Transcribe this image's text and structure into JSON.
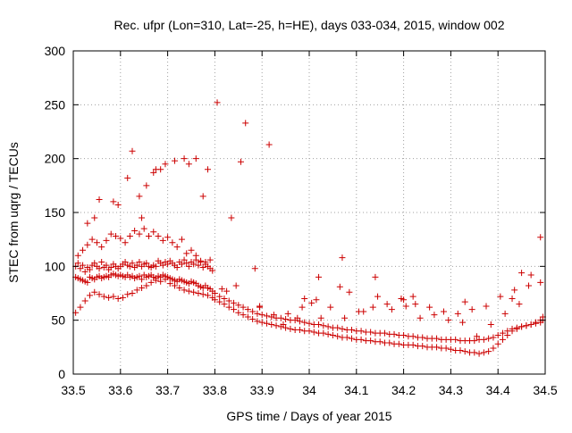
{
  "colors": {
    "series": "#cc0000",
    "axis": "#000000",
    "grid": "#a0a0a0"
  },
  "chart_data": {
    "type": "scatter",
    "title": "Rec. ufpr (Lon=310, Lat=-25, h=HE), days 033-034, 2015, window 002",
    "xlabel": "GPS time / Days of year 2015",
    "ylabel": "STEC from uqrg / TECUs",
    "xlim": [
      33.5,
      34.5
    ],
    "ylim": [
      0,
      300
    ],
    "xticks": [
      "33.5",
      "33.6",
      "33.7",
      "33.8",
      "33.9",
      "34",
      "34.1",
      "34.2",
      "34.3",
      "34.4",
      "34.5"
    ],
    "yticks": [
      "0",
      "50",
      "100",
      "150",
      "200",
      "250",
      "300"
    ],
    "grid": true,
    "marker": "plus",
    "x": [
      33.505,
      33.51,
      33.515,
      33.52,
      33.525,
      33.53,
      33.535,
      33.54,
      33.545,
      33.55,
      33.555,
      33.56,
      33.565,
      33.57,
      33.575,
      33.58,
      33.585,
      33.59,
      33.595,
      33.6,
      33.605,
      33.61,
      33.615,
      33.62,
      33.625,
      33.63,
      33.635,
      33.64,
      33.645,
      33.65,
      33.655,
      33.66,
      33.665,
      33.67,
      33.675,
      33.68,
      33.685,
      33.69,
      33.695,
      33.7,
      33.705,
      33.71,
      33.715,
      33.72,
      33.725,
      33.73,
      33.735,
      33.74,
      33.745,
      33.75,
      33.755,
      33.76,
      33.765,
      33.77,
      33.775,
      33.78,
      33.785,
      33.79,
      33.795,
      33.505,
      33.51,
      33.515,
      33.52,
      33.525,
      33.53,
      33.535,
      33.54,
      33.545,
      33.55,
      33.555,
      33.56,
      33.565,
      33.57,
      33.575,
      33.58,
      33.585,
      33.59,
      33.595,
      33.6,
      33.605,
      33.61,
      33.615,
      33.62,
      33.625,
      33.63,
      33.635,
      33.64,
      33.645,
      33.65,
      33.655,
      33.66,
      33.665,
      33.67,
      33.675,
      33.68,
      33.685,
      33.69,
      33.695,
      33.7,
      33.705,
      33.71,
      33.715,
      33.72,
      33.725,
      33.73,
      33.735,
      33.74,
      33.745,
      33.75,
      33.755,
      33.76,
      33.765,
      33.77,
      33.775,
      33.78,
      33.785,
      33.79,
      33.795,
      33.505,
      33.515,
      33.525,
      33.535,
      33.545,
      33.555,
      33.565,
      33.575,
      33.585,
      33.595,
      33.605,
      33.615,
      33.625,
      33.635,
      33.645,
      33.655,
      33.665,
      33.675,
      33.685,
      33.695,
      33.705,
      33.715,
      33.725,
      33.735,
      33.745,
      33.755,
      33.765,
      33.775,
      33.785,
      33.795,
      33.51,
      33.52,
      33.53,
      33.54,
      33.55,
      33.56,
      33.57,
      33.58,
      33.59,
      33.6,
      33.61,
      33.62,
      33.63,
      33.64,
      33.65,
      33.66,
      33.67,
      33.68,
      33.69,
      33.7,
      33.71,
      33.72,
      33.73,
      33.74,
      33.75,
      33.76,
      33.77,
      33.78,
      33.79,
      33.53,
      33.545,
      33.555,
      33.585,
      33.595,
      33.615,
      33.625,
      33.64,
      33.645,
      33.655,
      33.67,
      33.675,
      33.685,
      33.695,
      33.715,
      33.735,
      33.745,
      33.76,
      33.775,
      33.785,
      33.805,
      33.835,
      33.855,
      33.865,
      33.915,
      33.8,
      33.81,
      33.82,
      33.83,
      33.84,
      33.85,
      33.86,
      33.87,
      33.88,
      33.89,
      33.9,
      33.91,
      33.92,
      33.93,
      33.94,
      33.95,
      33.96,
      33.97,
      33.98,
      33.99,
      34,
      34.01,
      34.02,
      34.03,
      34.04,
      34.05,
      34.06,
      34.07,
      34.08,
      34.09,
      34.1,
      34.11,
      34.12,
      34.13,
      34.14,
      34.15,
      34.16,
      34.17,
      34.18,
      34.19,
      34.2,
      34.21,
      34.22,
      34.23,
      34.24,
      34.25,
      34.26,
      34.27,
      34.28,
      34.29,
      34.3,
      34.31,
      34.32,
      34.33,
      34.34,
      34.35,
      34.36,
      34.37,
      34.38,
      34.39,
      34.4,
      34.41,
      34.42,
      34.43,
      34.44,
      34.45,
      34.46,
      34.47,
      34.48,
      34.49,
      34.495,
      33.8,
      33.81,
      33.82,
      33.83,
      33.84,
      33.85,
      33.86,
      33.87,
      33.88,
      33.89,
      33.9,
      33.91,
      33.92,
      33.93,
      33.94,
      33.95,
      33.96,
      33.97,
      33.98,
      33.99,
      34,
      34.01,
      34.02,
      34.03,
      34.04,
      34.05,
      34.06,
      34.07,
      34.08,
      34.09,
      34.1,
      34.11,
      34.12,
      34.13,
      34.14,
      34.15,
      34.16,
      34.17,
      34.18,
      34.19,
      34.2,
      34.21,
      34.22,
      34.23,
      34.24,
      34.25,
      34.26,
      34.27,
      34.28,
      34.29,
      34.3,
      34.31,
      34.32,
      34.33,
      34.34,
      34.35,
      34.36,
      34.37,
      34.38,
      34.39,
      34.4,
      34.41,
      34.42,
      34.43,
      34.44,
      34.45,
      34.46,
      34.47,
      34.48,
      34.49,
      34.495,
      33.895,
      33.925,
      33.955,
      33.985,
      34.015,
      34.045,
      34.075,
      34.105,
      34.135,
      34.165,
      34.195,
      34.225,
      34.255,
      34.285,
      34.315,
      34.345,
      34.375,
      34.405,
      34.435,
      34.465,
      34.49,
      33.815,
      33.825,
      33.845,
      33.885,
      33.895,
      33.945,
      33.975,
      34.005,
      34.025,
      34.065,
      34.085,
      34.115,
      34.145,
      34.175,
      34.205,
      34.235,
      34.265,
      34.295,
      34.325,
      34.355,
      34.385,
      34.415,
      34.445,
      33.99,
      34.02,
      34.07,
      34.14,
      34.2,
      34.22,
      34.33,
      34.43,
      34.45,
      34.47,
      34.49
    ],
    "y": [
      100,
      103,
      98,
      101,
      95,
      99,
      97,
      101,
      103,
      100,
      98,
      104,
      99,
      101,
      97,
      99,
      102,
      100,
      98,
      100,
      102,
      104,
      101,
      100,
      103,
      99,
      101,
      104,
      100,
      102,
      103,
      100,
      99,
      101,
      100,
      105,
      103,
      101,
      104,
      102,
      105,
      103,
      101,
      99,
      104,
      102,
      106,
      103,
      100,
      104,
      102,
      106,
      101,
      104,
      99,
      102,
      100,
      98,
      96,
      90,
      89,
      88,
      87,
      86,
      85,
      90,
      89,
      88,
      90,
      91,
      89,
      90,
      91,
      90,
      92,
      93,
      92,
      91,
      92,
      91,
      90,
      92,
      90,
      91,
      89,
      90,
      91,
      88,
      92,
      90,
      91,
      92,
      90,
      89,
      91,
      90,
      92,
      91,
      90,
      89,
      88,
      87,
      86,
      88,
      87,
      86,
      85,
      84,
      86,
      85,
      84,
      82,
      81,
      80,
      82,
      80,
      79,
      77,
      57,
      62,
      68,
      73,
      76,
      74,
      72,
      71,
      72,
      70,
      71,
      74,
      75,
      78,
      80,
      82,
      85,
      87,
      86,
      88,
      84,
      82,
      80,
      78,
      77,
      76,
      75,
      74,
      73,
      71,
      110,
      115,
      120,
      125,
      122,
      118,
      124,
      130,
      128,
      126,
      122,
      128,
      133,
      130,
      135,
      128,
      132,
      128,
      124,
      127,
      122,
      118,
      125,
      112,
      115,
      110,
      105,
      104,
      106,
      140,
      145,
      162,
      160,
      157,
      182,
      207,
      165,
      145,
      175,
      187,
      190,
      190,
      195,
      198,
      200,
      195,
      200,
      165,
      190,
      252,
      145,
      197,
      233,
      213,
      75,
      72,
      70,
      68,
      66,
      64,
      62,
      60,
      58,
      56,
      55,
      54,
      53,
      52,
      52,
      51,
      50,
      50,
      49,
      48,
      47,
      46,
      46,
      45,
      44,
      43,
      43,
      42,
      41,
      41,
      40,
      40,
      39,
      39,
      38,
      38,
      38,
      37,
      37,
      36,
      36,
      35,
      35,
      34,
      34,
      33,
      33,
      33,
      32,
      32,
      32,
      32,
      31,
      31,
      31,
      31,
      32,
      32,
      33,
      34,
      36,
      38,
      40,
      42,
      43,
      44,
      45,
      46,
      48,
      50,
      53,
      69,
      67,
      65,
      62,
      60,
      57,
      55,
      53,
      51,
      49,
      48,
      47,
      46,
      45,
      44,
      43,
      42,
      41,
      41,
      40,
      40,
      39,
      38,
      38,
      37,
      36,
      35,
      34,
      34,
      33,
      32,
      32,
      31,
      31,
      30,
      30,
      29,
      29,
      28,
      28,
      27,
      27,
      27,
      26,
      26,
      25,
      25,
      25,
      24,
      24,
      23,
      22,
      22,
      21,
      20,
      20,
      19,
      20,
      21,
      24,
      28,
      32,
      36,
      40,
      42,
      44,
      45,
      46,
      47,
      48,
      50,
      62,
      55,
      56,
      62,
      69,
      62,
      52,
      58,
      62,
      65,
      70,
      65,
      62,
      58,
      56,
      60,
      63,
      72,
      78,
      82,
      85,
      79,
      77,
      82,
      98,
      63,
      46,
      52,
      66,
      52,
      81,
      76,
      58,
      72,
      60,
      63,
      52,
      55,
      50,
      48,
      35,
      46,
      56,
      65,
      70,
      90,
      108,
      90,
      69,
      72,
      67,
      70,
      94,
      92,
      127
    ]
  }
}
